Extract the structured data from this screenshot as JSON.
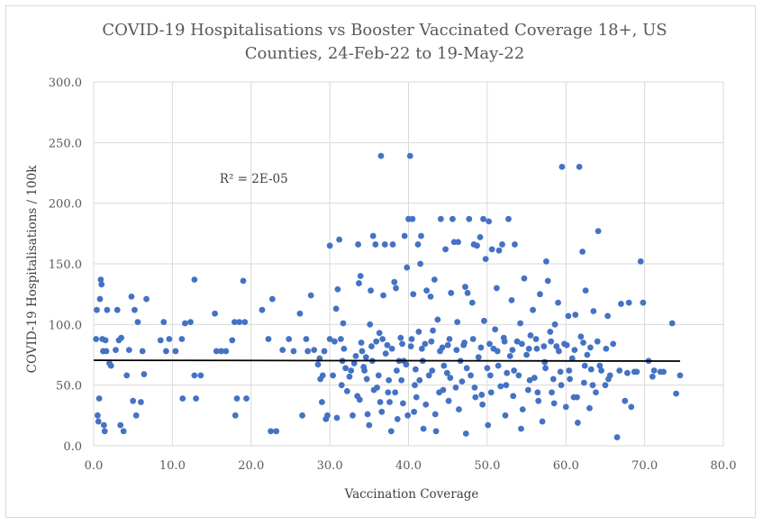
{
  "chart_data": {
    "type": "scatter",
    "title_lines": [
      "COVID-19 Hospitalisations vs Booster Vaccinated Coverage 18+, US",
      "Counties, 24-Feb-22 to 19-May-22"
    ],
    "xlabel": "Vaccination Coverage",
    "ylabel": "COVID-19 Hospitalisations / 100k",
    "xlim": [
      0,
      80
    ],
    "ylim": [
      0,
      300
    ],
    "x_ticks": [
      "0.0",
      "10.0",
      "20.0",
      "30.0",
      "40.0",
      "50.0",
      "60.0",
      "70.0",
      "80.0"
    ],
    "y_ticks": [
      "0.0",
      "50.0",
      "100.0",
      "150.0",
      "200.0",
      "250.0",
      "300.0"
    ],
    "grid": true,
    "marker_color": "#4472C4",
    "trendline": {
      "type": "linear",
      "color": "#000000",
      "x": [
        0,
        74.5
      ],
      "y": [
        70.5,
        69.8
      ]
    },
    "annotation": {
      "text": "R² = 2E-05",
      "x": 16,
      "y": 217
    },
    "points": [
      [
        0.3,
        88
      ],
      [
        0.4,
        112
      ],
      [
        0.5,
        25
      ],
      [
        0.6,
        20
      ],
      [
        0.7,
        39
      ],
      [
        0.8,
        121
      ],
      [
        0.9,
        137
      ],
      [
        1.0,
        133
      ],
      [
        1.1,
        88
      ],
      [
        1.2,
        78
      ],
      [
        1.3,
        17
      ],
      [
        1.4,
        12
      ],
      [
        1.5,
        87
      ],
      [
        1.6,
        78
      ],
      [
        1.7,
        112
      ],
      [
        2.0,
        68
      ],
      [
        2.2,
        66
      ],
      [
        2.8,
        79
      ],
      [
        3.0,
        112
      ],
      [
        3.2,
        87
      ],
      [
        3.5,
        89
      ],
      [
        3.4,
        17
      ],
      [
        3.8,
        12
      ],
      [
        4.2,
        58
      ],
      [
        4.5,
        79
      ],
      [
        4.8,
        123
      ],
      [
        5.0,
        37
      ],
      [
        5.2,
        112
      ],
      [
        5.4,
        25
      ],
      [
        5.6,
        102
      ],
      [
        6.0,
        36
      ],
      [
        6.2,
        78
      ],
      [
        6.4,
        59
      ],
      [
        6.7,
        121
      ],
      [
        8.5,
        87
      ],
      [
        8.9,
        102
      ],
      [
        9.2,
        78
      ],
      [
        9.6,
        88
      ],
      [
        10.4,
        78
      ],
      [
        11.2,
        88
      ],
      [
        11.3,
        39
      ],
      [
        11.6,
        101
      ],
      [
        12.3,
        102
      ],
      [
        12.8,
        137
      ],
      [
        12.8,
        58
      ],
      [
        13.0,
        39
      ],
      [
        13.6,
        58
      ],
      [
        15.4,
        109
      ],
      [
        15.6,
        78
      ],
      [
        16.2,
        78
      ],
      [
        16.8,
        78
      ],
      [
        17.6,
        87
      ],
      [
        18.0,
        25
      ],
      [
        17.9,
        102
      ],
      [
        18.2,
        39
      ],
      [
        18.5,
        102
      ],
      [
        19.0,
        136
      ],
      [
        19.2,
        102
      ],
      [
        19.4,
        39
      ],
      [
        21.4,
        112
      ],
      [
        22.2,
        88
      ],
      [
        22.5,
        12
      ],
      [
        22.7,
        121
      ],
      [
        23.2,
        12
      ],
      [
        24.0,
        79
      ],
      [
        24.8,
        88
      ],
      [
        25.4,
        78
      ],
      [
        26.2,
        109
      ],
      [
        26.5,
        25
      ],
      [
        27.0,
        88
      ],
      [
        27.2,
        78
      ],
      [
        27.6,
        124
      ],
      [
        28.0,
        79
      ],
      [
        28.5,
        67
      ],
      [
        28.7,
        72
      ],
      [
        28.8,
        55
      ],
      [
        29.0,
        36
      ],
      [
        29.1,
        58
      ],
      [
        29.3,
        78
      ],
      [
        29.5,
        22
      ],
      [
        29.7,
        25
      ],
      [
        30.0,
        88
      ],
      [
        30.0,
        165
      ],
      [
        30.4,
        58
      ],
      [
        30.6,
        86
      ],
      [
        30.9,
        23
      ],
      [
        30.8,
        113
      ],
      [
        31.0,
        129
      ],
      [
        31.2,
        170
      ],
      [
        31.4,
        88
      ],
      [
        31.6,
        70
      ],
      [
        31.7,
        101
      ],
      [
        31.8,
        80
      ],
      [
        32.0,
        64
      ],
      [
        32.5,
        57
      ],
      [
        32.7,
        62
      ],
      [
        32.9,
        25
      ],
      [
        33.1,
        68
      ],
      [
        33.5,
        41
      ],
      [
        33.3,
        74
      ],
      [
        33.6,
        166
      ],
      [
        33.7,
        134
      ],
      [
        33.9,
        140
      ],
      [
        34.1,
        78
      ],
      [
        34.3,
        65
      ],
      [
        34.6,
        73
      ],
      [
        34.8,
        26
      ],
      [
        34.7,
        55
      ],
      [
        35.0,
        17
      ],
      [
        35.1,
        100
      ],
      [
        35.2,
        128
      ],
      [
        35.4,
        70
      ],
      [
        35.5,
        173
      ],
      [
        35.8,
        166
      ],
      [
        35.9,
        86
      ],
      [
        36.0,
        48
      ],
      [
        36.2,
        58
      ],
      [
        36.3,
        93
      ],
      [
        36.5,
        239
      ],
      [
        36.6,
        28
      ],
      [
        36.8,
        124
      ],
      [
        37.0,
        166
      ],
      [
        37.1,
        76
      ],
      [
        37.3,
        83
      ],
      [
        37.4,
        44
      ],
      [
        37.6,
        36
      ],
      [
        37.8,
        12
      ],
      [
        38.0,
        166
      ],
      [
        38.2,
        135
      ],
      [
        38.4,
        130
      ],
      [
        38.5,
        62
      ],
      [
        38.6,
        22
      ],
      [
        38.8,
        70
      ],
      [
        39.0,
        89
      ],
      [
        39.1,
        54
      ],
      [
        39.3,
        35
      ],
      [
        39.5,
        173
      ],
      [
        39.7,
        67
      ],
      [
        39.8,
        147
      ],
      [
        39.9,
        25
      ],
      [
        40.0,
        187
      ],
      [
        40.2,
        239
      ],
      [
        40.3,
        82
      ],
      [
        40.5,
        187
      ],
      [
        40.6,
        125
      ],
      [
        40.8,
        50
      ],
      [
        40.9,
        63
      ],
      [
        41.0,
        40
      ],
      [
        41.2,
        166
      ],
      [
        41.3,
        94
      ],
      [
        41.5,
        150
      ],
      [
        41.6,
        173
      ],
      [
        41.8,
        70
      ],
      [
        41.9,
        14
      ],
      [
        42.1,
        84
      ],
      [
        42.3,
        128
      ],
      [
        42.6,
        58
      ],
      [
        42.8,
        123
      ],
      [
        43.0,
        62
      ],
      [
        43.1,
        95
      ],
      [
        43.3,
        137
      ],
      [
        43.5,
        12
      ],
      [
        43.7,
        104
      ],
      [
        43.9,
        44
      ],
      [
        44.1,
        187
      ],
      [
        44.3,
        81
      ],
      [
        44.5,
        66
      ],
      [
        44.7,
        162
      ],
      [
        44.9,
        60
      ],
      [
        45.1,
        37
      ],
      [
        45.2,
        88
      ],
      [
        45.4,
        126
      ],
      [
        45.6,
        187
      ],
      [
        45.8,
        168
      ],
      [
        46.0,
        48
      ],
      [
        46.2,
        102
      ],
      [
        46.3,
        168
      ],
      [
        46.6,
        70
      ],
      [
        46.8,
        53
      ],
      [
        47.0,
        83
      ],
      [
        47.2,
        131
      ],
      [
        47.3,
        10
      ],
      [
        47.5,
        126
      ],
      [
        47.7,
        187
      ],
      [
        47.9,
        58
      ],
      [
        48.1,
        118
      ],
      [
        48.3,
        166
      ],
      [
        48.5,
        40
      ],
      [
        48.7,
        165
      ],
      [
        48.9,
        73
      ],
      [
        49.1,
        172
      ],
      [
        49.3,
        42
      ],
      [
        49.5,
        187
      ],
      [
        49.6,
        103
      ],
      [
        49.8,
        154
      ],
      [
        50.0,
        64
      ],
      [
        50.1,
        17
      ],
      [
        50.2,
        185
      ],
      [
        50.4,
        58
      ],
      [
        50.6,
        162
      ],
      [
        50.8,
        80
      ],
      [
        51.0,
        96
      ],
      [
        51.2,
        130
      ],
      [
        51.5,
        161
      ],
      [
        51.7,
        49
      ],
      [
        51.9,
        166
      ],
      [
        52.1,
        89
      ],
      [
        52.3,
        25
      ],
      [
        52.5,
        60
      ],
      [
        52.7,
        187
      ],
      [
        52.9,
        74
      ],
      [
        53.1,
        120
      ],
      [
        53.3,
        41
      ],
      [
        53.5,
        166
      ],
      [
        53.8,
        86
      ],
      [
        54.0,
        58
      ],
      [
        54.2,
        101
      ],
      [
        54.3,
        14
      ],
      [
        54.7,
        138
      ],
      [
        55.0,
        75
      ],
      [
        55.2,
        46
      ],
      [
        55.5,
        91
      ],
      [
        55.8,
        112
      ],
      [
        56.0,
        56
      ],
      [
        56.3,
        80
      ],
      [
        56.5,
        37
      ],
      [
        56.7,
        125
      ],
      [
        57.0,
        20
      ],
      [
        57.3,
        69
      ],
      [
        57.5,
        152
      ],
      [
        57.7,
        136
      ],
      [
        58.0,
        94
      ],
      [
        58.2,
        44
      ],
      [
        58.4,
        55
      ],
      [
        58.6,
        100
      ],
      [
        58.8,
        82
      ],
      [
        59.0,
        118
      ],
      [
        59.3,
        61
      ],
      [
        59.5,
        230
      ],
      [
        59.8,
        84
      ],
      [
        60.0,
        32
      ],
      [
        60.3,
        107
      ],
      [
        60.5,
        55
      ],
      [
        60.8,
        72
      ],
      [
        61.0,
        40
      ],
      [
        61.2,
        108
      ],
      [
        61.5,
        19
      ],
      [
        61.7,
        230
      ],
      [
        61.9,
        90
      ],
      [
        62.1,
        160
      ],
      [
        62.3,
        52
      ],
      [
        62.5,
        128
      ],
      [
        62.7,
        75
      ],
      [
        63.0,
        31
      ],
      [
        63.2,
        63
      ],
      [
        63.5,
        111
      ],
      [
        63.8,
        44
      ],
      [
        64.1,
        177
      ],
      [
        64.3,
        66
      ],
      [
        65.0,
        50
      ],
      [
        65.3,
        107
      ],
      [
        65.6,
        58
      ],
      [
        66.0,
        84
      ],
      [
        66.5,
        7
      ],
      [
        66.8,
        62
      ],
      [
        67.0,
        117
      ],
      [
        67.5,
        37
      ],
      [
        67.8,
        60
      ],
      [
        68.0,
        118
      ],
      [
        68.3,
        32
      ],
      [
        68.7,
        61
      ],
      [
        69.0,
        61
      ],
      [
        69.5,
        152
      ],
      [
        69.8,
        118
      ],
      [
        70.5,
        70
      ],
      [
        71.0,
        57
      ],
      [
        71.2,
        62
      ],
      [
        72.0,
        61
      ],
      [
        72.4,
        61
      ],
      [
        73.5,
        101
      ],
      [
        74.0,
        43
      ],
      [
        74.5,
        58
      ],
      [
        31.5,
        50
      ],
      [
        32.2,
        45
      ],
      [
        33.8,
        38
      ],
      [
        34.4,
        62
      ],
      [
        35.6,
        46
      ],
      [
        36.4,
        36
      ],
      [
        37.5,
        54
      ],
      [
        38.3,
        44
      ],
      [
        39.4,
        70
      ],
      [
        40.7,
        28
      ],
      [
        41.4,
        54
      ],
      [
        42.2,
        34
      ],
      [
        43.4,
        26
      ],
      [
        44.4,
        46
      ],
      [
        45.3,
        56
      ],
      [
        46.4,
        30
      ],
      [
        47.4,
        64
      ],
      [
        48.4,
        48
      ],
      [
        49.4,
        34
      ],
      [
        50.5,
        44
      ],
      [
        51.4,
        66
      ],
      [
        52.4,
        50
      ],
      [
        53.4,
        62
      ],
      [
        54.5,
        30
      ],
      [
        55.4,
        54
      ],
      [
        56.4,
        44
      ],
      [
        57.4,
        64
      ],
      [
        58.5,
        35
      ],
      [
        59.4,
        50
      ],
      [
        60.4,
        62
      ],
      [
        61.4,
        40
      ],
      [
        62.4,
        66
      ],
      [
        63.4,
        50
      ],
      [
        64.5,
        62
      ],
      [
        65.4,
        55
      ],
      [
        34.0,
        85
      ],
      [
        35.3,
        82
      ],
      [
        36.7,
        88
      ],
      [
        37.9,
        80
      ],
      [
        39.2,
        84
      ],
      [
        40.4,
        88
      ],
      [
        41.7,
        80
      ],
      [
        42.9,
        86
      ],
      [
        44.0,
        78
      ],
      [
        45.0,
        83
      ],
      [
        46.1,
        79
      ],
      [
        47.1,
        85
      ],
      [
        48.2,
        88
      ],
      [
        49.2,
        81
      ],
      [
        50.3,
        84
      ],
      [
        51.3,
        78
      ],
      [
        52.2,
        86
      ],
      [
        53.2,
        79
      ],
      [
        54.4,
        84
      ],
      [
        55.3,
        80
      ],
      [
        56.2,
        88
      ],
      [
        57.2,
        82
      ],
      [
        58.1,
        86
      ],
      [
        59.1,
        78
      ],
      [
        60.1,
        83
      ],
      [
        61.1,
        79
      ],
      [
        62.2,
        85
      ],
      [
        63.1,
        81
      ],
      [
        64.0,
        86
      ],
      [
        65.1,
        80
      ]
    ]
  }
}
